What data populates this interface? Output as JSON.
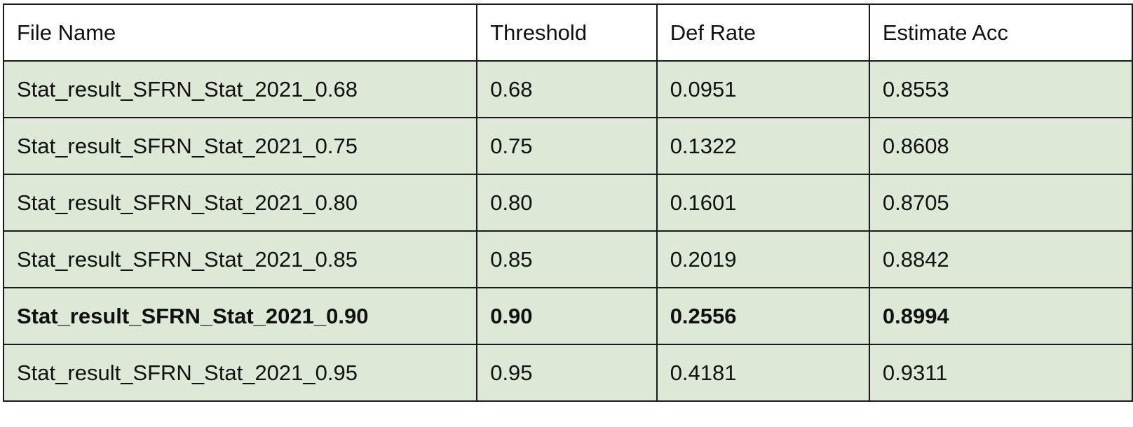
{
  "table": {
    "headers": [
      "File Name",
      "Threshold",
      "Def Rate",
      "Estimate Acc"
    ],
    "rows": [
      [
        "Stat_result_SFRN_Stat_2021_0.68",
        "0.68",
        "0.0951",
        "0.8553"
      ],
      [
        "Stat_result_SFRN_Stat_2021_0.75",
        "0.75",
        "0.1322",
        "0.8608"
      ],
      [
        "Stat_result_SFRN_Stat_2021_0.80",
        "0.80",
        "0.1601",
        "0.8705"
      ],
      [
        "Stat_result_SFRN_Stat_2021_0.85",
        "0.85",
        "0.2019",
        "0.8842"
      ],
      [
        "Stat_result_SFRN_Stat_2021_0.90",
        "0.90",
        "0.2556",
        "0.8994"
      ],
      [
        "Stat_result_SFRN_Stat_2021_0.95",
        "0.95",
        "0.4181",
        "0.9311"
      ]
    ],
    "highlighted_row_index": 4
  },
  "colors": {
    "row_background": "#dde8d6",
    "header_background": "#ffffff",
    "border": "#1a1a1a"
  }
}
